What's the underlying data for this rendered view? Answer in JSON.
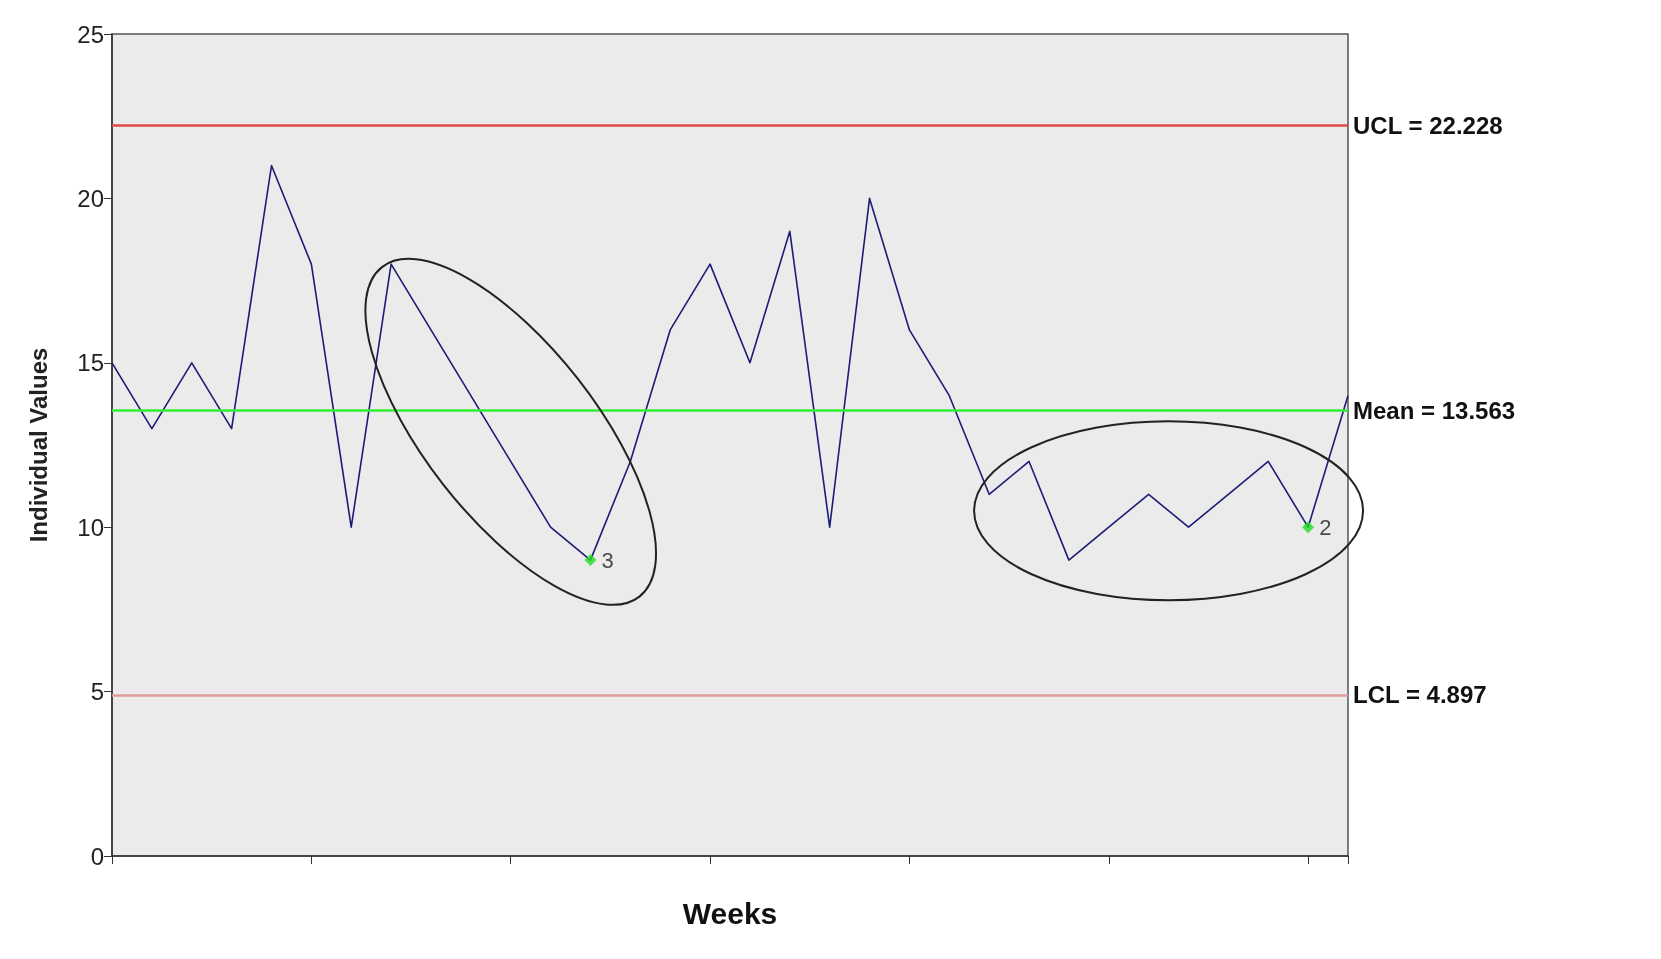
{
  "chart_data": {
    "type": "line",
    "xlabel": "Weeks",
    "ylabel": "Individual Values",
    "categories": [
      null,
      null,
      null,
      null,
      null,
      null,
      null,
      null,
      null,
      null,
      null,
      null,
      null,
      null,
      null,
      null,
      null,
      null,
      null,
      null,
      null,
      null,
      null,
      null,
      null,
      null,
      null,
      null,
      null,
      null,
      null,
      null
    ],
    "series": [
      {
        "color": "#1c1c78",
        "values": [
          15,
          13,
          15,
          13,
          21,
          18,
          10,
          18,
          16,
          14,
          12,
          10,
          9,
          12,
          16,
          18,
          15,
          19,
          10,
          20,
          16,
          14,
          11,
          12,
          9,
          10,
          11,
          10,
          11,
          12,
          10,
          14
        ]
      },
      {
        "type": "scatter",
        "color": "#22dd22",
        "marker": "diamond",
        "values": [
          null,
          null,
          null,
          null,
          null,
          null,
          null,
          null,
          null,
          null,
          null,
          null,
          9,
          null,
          null,
          null,
          null,
          null,
          null,
          null,
          null,
          null,
          null,
          null,
          null,
          null,
          null,
          null,
          null,
          null,
          10,
          null
        ]
      }
    ],
    "annotations": [
      "3",
      "2"
    ],
    "ylim": [
      0,
      25
    ],
    "yticks": [
      0,
      5,
      10,
      15,
      20,
      25
    ],
    "grid": false,
    "marker": "none",
    "ref_lines": [
      {
        "axis": "y",
        "value": 22.228,
        "label": "UCL = 22.228",
        "color": "#e04848"
      },
      {
        "axis": "y",
        "value": 13.563,
        "label": "Mean = 13.563",
        "color": "#33ee33"
      },
      {
        "axis": "y",
        "value": 4.897,
        "label": "LCL = 4.897",
        "color": "#e09a9a"
      }
    ]
  }
}
